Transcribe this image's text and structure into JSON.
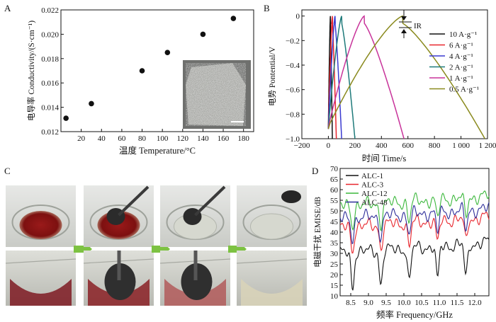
{
  "chart_data": [
    {
      "panel": "A",
      "type": "scatter",
      "xlabel": "温度  Temperature/°C",
      "ylabel": "电导率  Conductivity/(S·cm⁻¹)",
      "xlim": [
        0,
        190
      ],
      "ylim": [
        0.012,
        0.022
      ],
      "xticks": [
        "20",
        "40",
        "60",
        "80",
        "100",
        "120",
        "140",
        "160",
        "180"
      ],
      "yticks": [
        "0.012",
        "0.014",
        "0.016",
        "0.018",
        "0.020",
        "0.022"
      ],
      "x": [
        5,
        30,
        80,
        105,
        140,
        170
      ],
      "y": [
        0.0131,
        0.0143,
        0.017,
        0.0185,
        0.02,
        0.0213
      ],
      "inset": "photo"
    },
    {
      "panel": "B",
      "type": "line",
      "xlabel": "时间  Time/s",
      "ylabel": "电势  Pontential/V",
      "xlim": [
        -200,
        1200
      ],
      "ylim": [
        -1.0,
        0.05
      ],
      "xticks": [
        "−200",
        "0",
        "200",
        "400",
        "600",
        "800",
        "1 000",
        "1 200"
      ],
      "yticks": [
        "0",
        "−0.2",
        "−0.4",
        "−0.6",
        "−0.8",
        "−1.0"
      ],
      "annotation": "IR",
      "series": [
        {
          "name": "10 A·g⁻¹",
          "color": "#111111",
          "peak": 15,
          "end": 30
        },
        {
          "name": "6 A·g⁻¹",
          "color": "#e8262d",
          "peak": 30,
          "end": 60
        },
        {
          "name": "4 A·g⁻¹",
          "color": "#3a3ad0",
          "peak": 50,
          "end": 100
        },
        {
          "name": "2 A·g⁻¹",
          "color": "#1e7a7a",
          "peak": 100,
          "end": 200
        },
        {
          "name": "1 A·g⁻¹",
          "color": "#c8339a",
          "peak": 270,
          "end": 570
        },
        {
          "name": "0.5 A·g⁻¹",
          "color": "#8a8a1e",
          "peak": 560,
          "end": 1180
        }
      ]
    },
    {
      "panel": "C",
      "type": "other",
      "content": "photo sequence"
    },
    {
      "panel": "D",
      "type": "line",
      "xlabel": "频率 Frequency/GHz",
      "ylabel": "电磁干扰  EMISE/dB",
      "xlim": [
        8.2,
        12.4
      ],
      "ylim": [
        10,
        70
      ],
      "xticks": [
        "8.5",
        "9.0",
        "9.5",
        "10.0",
        "10.5",
        "11.0",
        "11.5",
        "12.0"
      ],
      "yticks": [
        "10",
        "15",
        "20",
        "25",
        "30",
        "35",
        "40",
        "45",
        "50",
        "55",
        "60",
        "65",
        "70"
      ],
      "series": [
        {
          "name": "ALC-1",
          "color": "#111111",
          "base": 30
        },
        {
          "name": "ALC-3",
          "color": "#e8262d",
          "base": 42
        },
        {
          "name": "ALC-12",
          "color": "#3cb83c",
          "base": 52
        },
        {
          "name": "ALC-48",
          "color": "#2e2e9a",
          "base": 46
        }
      ]
    }
  ],
  "panels": {
    "a": "A",
    "b": "B",
    "c": "C",
    "d": "D"
  }
}
